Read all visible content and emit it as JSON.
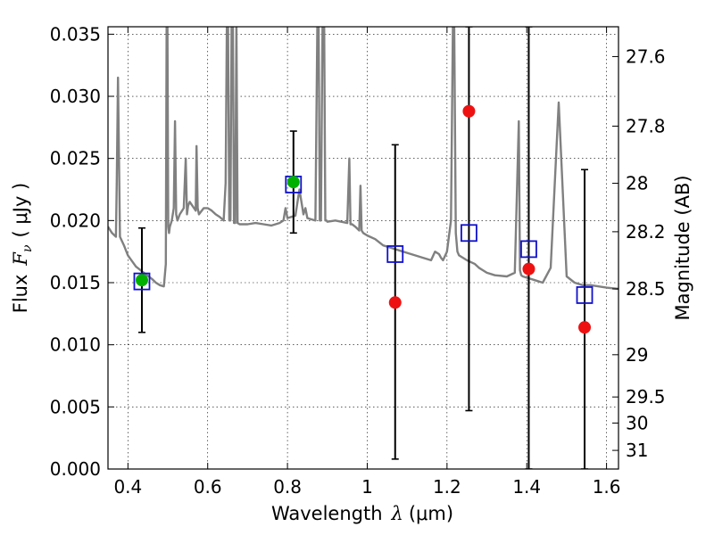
{
  "chart_data": {
    "type": "scatter",
    "xlabel": "Wavelength",
    "xlabel_symbol": "λ",
    "xlabel_unit": "(μm)",
    "ylabel": "Flux",
    "ylabel_symbol": "F",
    "ylabel_symbol_sub": "ν",
    "ylabel_unit": "( μJy )",
    "y2label": "Magnitude (AB)",
    "xlim": [
      0.35,
      1.63
    ],
    "ylim": [
      0.0,
      0.0356
    ],
    "grid": true,
    "xticks": [
      0.4,
      0.6,
      0.8,
      1.0,
      1.2,
      1.4,
      1.6
    ],
    "xtick_labels": [
      "0.4",
      "0.6",
      "0.8",
      "1",
      "1.2",
      "1.4",
      "1.6"
    ],
    "yticks": [
      0.0,
      0.005,
      0.01,
      0.015,
      0.02,
      0.025,
      0.03,
      0.035
    ],
    "ytick_labels": [
      "0.000",
      "0.005",
      "0.010",
      "0.015",
      "0.020",
      "0.025",
      "0.030",
      "0.035"
    ],
    "y2ticks": [
      {
        "label": "27.6",
        "flux": 0.0332
      },
      {
        "label": "27.8",
        "flux": 0.0276
      },
      {
        "label": "28",
        "flux": 0.023
      },
      {
        "label": "28.2",
        "flux": 0.0191
      },
      {
        "label": "28.5",
        "flux": 0.0145
      },
      {
        "label": "29",
        "flux": 0.0092
      },
      {
        "label": "29.5",
        "flux": 0.0058
      },
      {
        "label": "30",
        "flux": 0.0037
      },
      {
        "label": "31",
        "flux": 0.0015
      }
    ],
    "colors": {
      "model": "#808080",
      "detection": "#00b000",
      "upper_limit_point": "#ee1111",
      "model_box": "#1010cc",
      "errorbar": "#000000"
    },
    "series": [
      {
        "kind": "model_spectrum_line",
        "x": [
          0.35,
          0.36,
          0.37,
          0.372,
          0.375,
          0.378,
          0.38,
          0.39,
          0.4,
          0.42,
          0.44,
          0.46,
          0.47,
          0.48,
          0.49,
          0.495,
          0.497,
          0.499,
          0.501,
          0.503,
          0.505,
          0.51,
          0.515,
          0.518,
          0.521,
          0.524,
          0.53,
          0.54,
          0.545,
          0.548,
          0.551,
          0.555,
          0.57,
          0.572,
          0.575,
          0.578,
          0.59,
          0.6,
          0.61,
          0.62,
          0.63,
          0.64,
          0.645,
          0.648,
          0.651,
          0.654,
          0.657,
          0.66,
          0.663,
          0.666,
          0.669,
          0.672,
          0.675,
          0.68,
          0.7,
          0.72,
          0.74,
          0.76,
          0.78,
          0.79,
          0.795,
          0.8,
          0.81,
          0.82,
          0.83,
          0.84,
          0.845,
          0.85,
          0.86,
          0.87,
          0.875,
          0.878,
          0.881,
          0.884,
          0.888,
          0.892,
          0.895,
          0.898,
          0.9,
          0.92,
          0.95,
          0.955,
          0.958,
          0.962,
          0.97,
          0.98,
          0.983,
          0.986,
          0.99,
          1.0,
          1.02,
          1.04,
          1.06,
          1.08,
          1.1,
          1.12,
          1.14,
          1.16,
          1.17,
          1.18,
          1.185,
          1.19,
          1.2,
          1.21,
          1.215,
          1.218,
          1.222,
          1.226,
          1.23,
          1.25,
          1.27,
          1.28,
          1.29,
          1.3,
          1.32,
          1.35,
          1.37,
          1.38,
          1.383,
          1.386,
          1.39,
          1.4,
          1.42,
          1.44,
          1.46,
          1.48,
          1.5,
          1.52,
          1.54,
          1.56,
          1.58,
          1.6,
          1.63
        ],
        "y": [
          0.0195,
          0.019,
          0.0187,
          0.023,
          0.0315,
          0.024,
          0.0187,
          0.018,
          0.0172,
          0.0163,
          0.0158,
          0.0153,
          0.015,
          0.0148,
          0.0147,
          0.0165,
          0.036,
          0.036,
          0.0195,
          0.019,
          0.0195,
          0.02,
          0.021,
          0.028,
          0.0205,
          0.02,
          0.0205,
          0.021,
          0.025,
          0.0205,
          0.0212,
          0.0215,
          0.0208,
          0.026,
          0.021,
          0.0205,
          0.021,
          0.021,
          0.0208,
          0.0205,
          0.0203,
          0.02,
          0.023,
          0.036,
          0.036,
          0.02,
          0.02,
          0.036,
          0.036,
          0.0198,
          0.0198,
          0.036,
          0.0198,
          0.0197,
          0.0197,
          0.0198,
          0.0197,
          0.0196,
          0.0198,
          0.02,
          0.021,
          0.0202,
          0.0203,
          0.0204,
          0.0225,
          0.0205,
          0.021,
          0.0202,
          0.0201,
          0.02,
          0.036,
          0.036,
          0.02,
          0.02,
          0.036,
          0.036,
          0.02,
          0.02,
          0.0199,
          0.02,
          0.0198,
          0.025,
          0.0197,
          0.0197,
          0.0195,
          0.0192,
          0.0228,
          0.0192,
          0.019,
          0.0188,
          0.0185,
          0.018,
          0.0178,
          0.0176,
          0.0174,
          0.0172,
          0.017,
          0.0168,
          0.0175,
          0.0173,
          0.017,
          0.0168,
          0.0175,
          0.02,
          0.036,
          0.036,
          0.019,
          0.0175,
          0.0172,
          0.0168,
          0.0165,
          0.0162,
          0.016,
          0.0158,
          0.0156,
          0.0155,
          0.0158,
          0.028,
          0.016,
          0.0156,
          0.0155,
          0.0154,
          0.0152,
          0.015,
          0.0162,
          0.0295,
          0.0155,
          0.015,
          0.0148,
          0.0148,
          0.0147,
          0.0146,
          0.0145
        ]
      },
      {
        "kind": "model_synthetic_photometry_boxes",
        "x": [
          0.435,
          0.815,
          1.07,
          1.255,
          1.405,
          1.545
        ],
        "y": [
          0.0151,
          0.0229,
          0.0173,
          0.019,
          0.0177,
          0.014
        ]
      },
      {
        "kind": "detections",
        "x": [
          0.435,
          0.815
        ],
        "y": [
          0.0152,
          0.0231
        ],
        "yerr_low": [
          0.011,
          0.019
        ],
        "yerr_high": [
          0.0194,
          0.0272
        ]
      },
      {
        "kind": "upper_limit_points",
        "x": [
          1.07,
          1.255,
          1.405,
          1.545
        ],
        "y": [
          0.0134,
          0.0288,
          0.0161,
          0.0114
        ],
        "yerr_low": [
          0.0008,
          0.0047,
          0.0,
          0.0
        ],
        "yerr_high": [
          0.0261,
          0.0356,
          0.0356,
          0.0241
        ]
      }
    ]
  }
}
